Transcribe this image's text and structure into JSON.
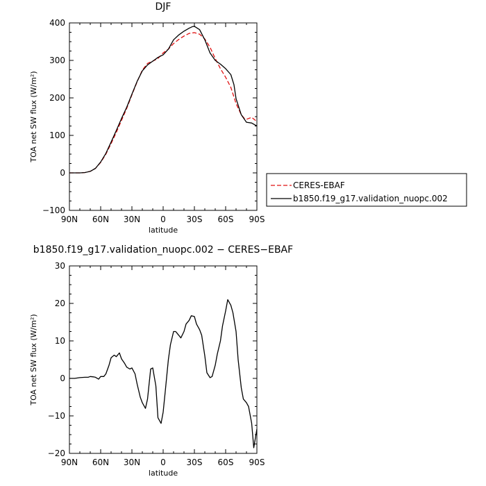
{
  "chart_data": [
    {
      "type": "line",
      "title": "DJF",
      "xlabel": "latitude",
      "ylabel": "TOA net SW flux (W/m²)",
      "xlim": [
        90,
        -90
      ],
      "ylim": [
        -100,
        400
      ],
      "xticks": [
        90,
        60,
        30,
        0,
        -30,
        -60,
        -90
      ],
      "xticklabels": [
        "90N",
        "60N",
        "30N",
        "0",
        "30S",
        "60S",
        "90S"
      ],
      "yticks": [
        -100,
        0,
        100,
        200,
        300,
        400
      ],
      "yticklabels": [
        "−100",
        "0",
        "100",
        "200",
        "300",
        "400"
      ],
      "grid": false,
      "legend": "outside-right",
      "series": [
        {
          "name": "CERES-EBAF",
          "color": "#e01010",
          "style": "dashed",
          "x": [
            90,
            80,
            75,
            70,
            65,
            60,
            55,
            50,
            45,
            40,
            35,
            30,
            25,
            20,
            15,
            12,
            10,
            5,
            0,
            -5,
            -10,
            -15,
            -20,
            -25,
            -30,
            -35,
            -40,
            -45,
            -50,
            -55,
            -60,
            -65,
            -70,
            -75,
            -78,
            -80,
            -85,
            -90
          ],
          "values": [
            0,
            0,
            1,
            4,
            12,
            28,
            50,
            78,
            108,
            140,
            172,
            208,
            243,
            274,
            292,
            296,
            298,
            305,
            320,
            330,
            345,
            356,
            365,
            372,
            374,
            370,
            357,
            335,
            305,
            278,
            255,
            228,
            185,
            155,
            145,
            143,
            148,
            137
          ]
        },
        {
          "name": "b1850.f19_g17.validation_nuopc.002",
          "color": "#000000",
          "style": "solid",
          "x": [
            90,
            80,
            75,
            70,
            65,
            60,
            55,
            50,
            45,
            40,
            35,
            30,
            25,
            20,
            15,
            12,
            10,
            5,
            0,
            -5,
            -10,
            -15,
            -20,
            -25,
            -28,
            -30,
            -35,
            -40,
            -45,
            -50,
            -55,
            -60,
            -65,
            -68,
            -70,
            -75,
            -80,
            -85,
            -90
          ],
          "values": [
            0,
            0,
            1,
            4,
            12,
            29,
            52,
            82,
            113,
            145,
            175,
            210,
            244,
            272,
            288,
            294,
            298,
            308,
            315,
            330,
            355,
            368,
            378,
            386,
            390,
            391,
            382,
            355,
            320,
            300,
            290,
            278,
            262,
            235,
            198,
            155,
            135,
            133,
            125
          ]
        }
      ]
    },
    {
      "type": "line",
      "title": "b1850.f19_g17.validation_nuopc.002 − CERES−EBAF",
      "xlabel": "latitude",
      "ylabel": "TOA net SW flux (W/m²)",
      "xlim": [
        90,
        -90
      ],
      "ylim": [
        -20,
        30
      ],
      "xticks": [
        90,
        60,
        30,
        0,
        -30,
        -60,
        -90
      ],
      "xticklabels": [
        "90N",
        "60N",
        "30N",
        "0",
        "30S",
        "60S",
        "90S"
      ],
      "yticks": [
        -20,
        -10,
        0,
        10,
        20,
        30
      ],
      "yticklabels": [
        "−20",
        "−10",
        "0",
        "10",
        "20",
        "30"
      ],
      "grid": false,
      "series": [
        {
          "color": "#000000",
          "style": "solid",
          "x": [
            90,
            85,
            80,
            75,
            72,
            70,
            67,
            65,
            62,
            60,
            57,
            55,
            52,
            50,
            47,
            45,
            42,
            40,
            37,
            35,
            32,
            30,
            27,
            25,
            22,
            20,
            17,
            15,
            12,
            10,
            7,
            5,
            2,
            0,
            -2,
            -5,
            -7,
            -10,
            -12,
            -15,
            -17,
            -20,
            -22,
            -25,
            -27,
            -30,
            -32,
            -35,
            -37,
            -40,
            -42,
            -45,
            -47,
            -50,
            -52,
            -55,
            -57,
            -60,
            -62,
            -65,
            -67,
            -70,
            -72,
            -75,
            -77,
            -80,
            -82,
            -85,
            -87,
            -90
          ],
          "values": [
            0,
            0,
            0.2,
            0.3,
            0.3,
            0.5,
            0.4,
            0.3,
            -0.2,
            0.5,
            0.5,
            1.2,
            3.5,
            5.5,
            6.2,
            5.8,
            6.8,
            5.2,
            4,
            3,
            2.5,
            2.8,
            1.2,
            -1.5,
            -5,
            -6.5,
            -8,
            -5.5,
            2.5,
            2.8,
            -2,
            -10.5,
            -12,
            -9,
            -3.5,
            5,
            9,
            12.5,
            12.5,
            11.5,
            10.8,
            12.5,
            14.5,
            15.5,
            16.7,
            16.5,
            14.5,
            13,
            11.5,
            6,
            1.5,
            0.2,
            0.5,
            3.5,
            6.5,
            10,
            14,
            18,
            21,
            19.5,
            17.5,
            12.5,
            5,
            -2.5,
            -5.5,
            -6.5,
            -7.5,
            -12,
            -18.5,
            -13.5
          ]
        }
      ]
    }
  ]
}
